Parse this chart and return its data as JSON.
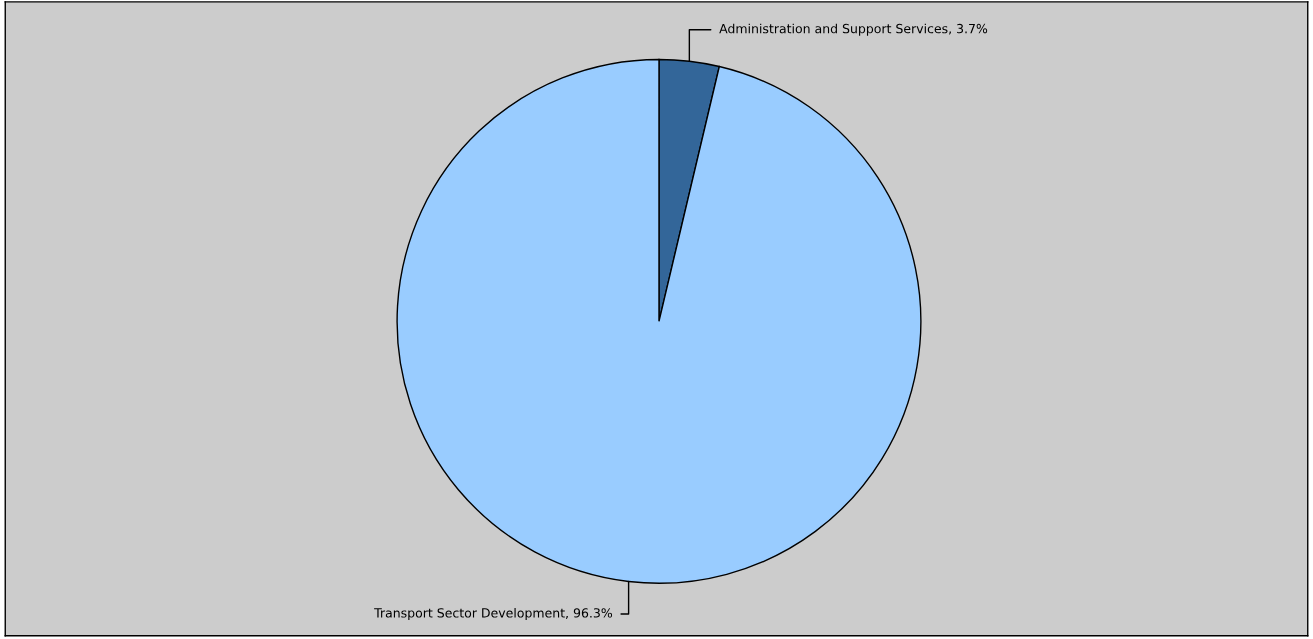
{
  "chart_data": {
    "type": "pie",
    "categories": [
      "Administration and Support Services",
      "Transport Sector Development"
    ],
    "values": [
      3.7,
      96.3
    ],
    "value_labels": [
      "3.7%",
      "96.3%"
    ],
    "colors": [
      "#336699",
      "#99ccff"
    ],
    "legend": false
  }
}
